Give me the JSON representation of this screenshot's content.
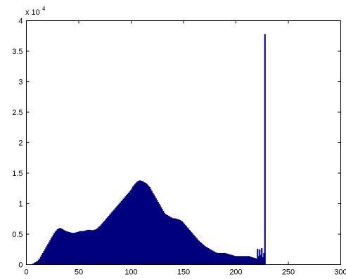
{
  "chart_data": {
    "type": "bar",
    "title": "",
    "xlabel": "",
    "ylabel": "",
    "xlim": [
      0,
      300
    ],
    "ylim": [
      0,
      40000
    ],
    "x_ticks": [
      0,
      50,
      100,
      150,
      200,
      250,
      300
    ],
    "y_ticks": [
      0,
      5000,
      10000,
      15000,
      20000,
      25000,
      30000,
      35000,
      40000
    ],
    "x_tick_labels": [
      "0",
      "50",
      "100",
      "150",
      "200",
      "250",
      "300"
    ],
    "y_tick_labels": [
      "0",
      "0.5",
      "1",
      "1.5",
      "2",
      "2.5",
      "3",
      "3.5",
      "4"
    ],
    "y_exponent_base": "x 10",
    "y_exponent_power": "4",
    "grid": false,
    "bar_color": "#00007F",
    "series": [
      {
        "x_start": 0,
        "x_step": 1,
        "values": [
          0,
          0,
          0,
          0,
          0,
          100,
          200,
          300,
          400,
          500,
          600,
          800,
          1000,
          1300,
          1600,
          1900,
          2200,
          2500,
          2800,
          3100,
          3400,
          3700,
          4000,
          4300,
          4600,
          4900,
          5200,
          5400,
          5600,
          5800,
          5900,
          6000,
          6000,
          5900,
          5800,
          5700,
          5600,
          5500,
          5450,
          5400,
          5350,
          5300,
          5250,
          5200,
          5200,
          5200,
          5250,
          5300,
          5350,
          5400,
          5450,
          5500,
          5500,
          5500,
          5500,
          5550,
          5600,
          5650,
          5700,
          5700,
          5700,
          5650,
          5650,
          5650,
          5700,
          5750,
          5800,
          5950,
          6100,
          6250,
          6400,
          6600,
          6800,
          7000,
          7200,
          7400,
          7600,
          7800,
          8000,
          8200,
          8400,
          8600,
          8800,
          9000,
          9200,
          9400,
          9600,
          9800,
          10000,
          10200,
          10400,
          10600,
          10800,
          11000,
          11200,
          11400,
          11600,
          11800,
          12000,
          12200,
          12500,
          12800,
          13000,
          13200,
          13400,
          13600,
          13700,
          13800,
          13800,
          13750,
          13700,
          13600,
          13500,
          13400,
          13300,
          13100,
          12900,
          12700,
          12400,
          12100,
          11800,
          11500,
          11200,
          10900,
          10600,
          10300,
          10000,
          9700,
          9400,
          9100,
          8800,
          8500,
          8300,
          8200,
          8100,
          8000,
          7900,
          7800,
          7700,
          7600,
          7600,
          7600,
          7550,
          7500,
          7450,
          7400,
          7300,
          7200,
          7100,
          6900,
          6700,
          6500,
          6300,
          6100,
          5900,
          5700,
          5500,
          5300,
          5100,
          4900,
          4700,
          4500,
          4300,
          4100,
          3900,
          3750,
          3600,
          3450,
          3300,
          3150,
          3000,
          2900,
          2800,
          2700,
          2600,
          2500,
          2400,
          2300,
          2200,
          2100,
          2000,
          1950,
          1900,
          1900,
          1900,
          1900,
          1900,
          1900,
          1900,
          1900,
          1850,
          1800,
          1750,
          1700,
          1650,
          1600,
          1550,
          1500,
          1450,
          1400,
          1400,
          1400,
          1400,
          1400,
          1400,
          1400,
          1400,
          1400,
          1400,
          1400,
          1400,
          1400,
          1400,
          1300,
          1250,
          1200,
          1150,
          1100,
          1050,
          1000,
          2600,
          1400,
          2500,
          1600,
          2700,
          1200,
          1900,
          37800
        ]
      }
    ]
  }
}
